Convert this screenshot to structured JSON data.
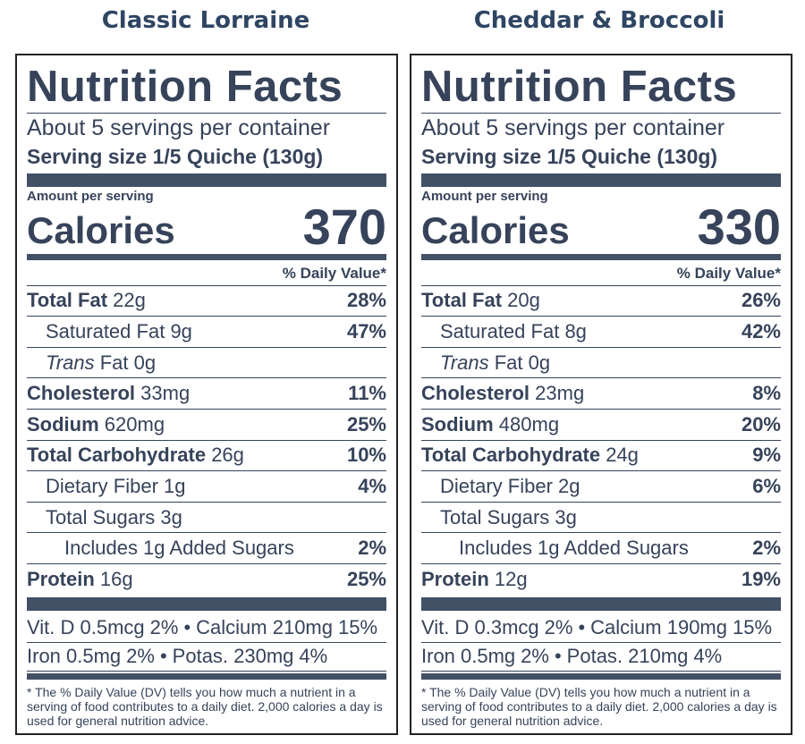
{
  "labels": [
    {
      "header": "Classic Lorraine",
      "title": "Nutrition Facts",
      "servings": "About 5 servings per container",
      "serving_size": "Serving size 1/5 Quiche (130g)",
      "amount_per_serving": "Amount per serving",
      "calories_label": "Calories",
      "calories": "370",
      "dv_header": "% Daily Value*",
      "rows": [
        {
          "name": "Total Fat",
          "amount": "22g",
          "dv": "28%",
          "bold": true,
          "indent": 0
        },
        {
          "name": "Saturated Fat",
          "amount": "9g",
          "dv": "47%",
          "bold": false,
          "indent": 1
        },
        {
          "name": "Trans",
          "amount": "Fat 0g",
          "bold": false,
          "italic": true,
          "indent": 1
        },
        {
          "name": "Cholesterol",
          "amount": "33mg",
          "dv": "11%",
          "bold": true,
          "indent": 0
        },
        {
          "name": "Sodium",
          "amount": "620mg",
          "dv": "25%",
          "bold": true,
          "indent": 0
        },
        {
          "name": "Total Carbohydrate",
          "amount": "26g",
          "dv": "10%",
          "bold": true,
          "indent": 0
        },
        {
          "name": "Dietary Fiber",
          "amount": "1g",
          "dv": "4%",
          "bold": false,
          "indent": 1
        },
        {
          "name": "Total Sugars",
          "amount": "3g",
          "bold": false,
          "indent": 1
        },
        {
          "name": "Includes 1g Added Sugars",
          "dv": "2%",
          "bold": false,
          "indent": 2
        },
        {
          "name": "Protein",
          "amount": "16g",
          "dv": "25%",
          "bold": true,
          "indent": 0
        }
      ],
      "minerals": [
        [
          {
            "text": "Vit. D 0.5mcg",
            "dv": "2%"
          },
          {
            "text": "Calcium 210mg",
            "dv": "15%"
          }
        ],
        [
          {
            "text": "Iron 0.5mg",
            "dv": "2%"
          },
          {
            "text": "Potas. 230mg",
            "dv": "4%"
          }
        ]
      ],
      "footnote": "* The % Daily Value (DV) tells you how much a nutrient in a serving of food contributes to a daily diet. 2,000 calories a day is used for general nutrition advice."
    },
    {
      "header": "Cheddar & Broccoli",
      "title": "Nutrition Facts",
      "servings": "About 5 servings per container",
      "serving_size": "Serving size 1/5 Quiche (130g)",
      "amount_per_serving": "Amount per serving",
      "calories_label": "Calories",
      "calories": "330",
      "dv_header": "% Daily Value*",
      "rows": [
        {
          "name": "Total Fat",
          "amount": "20g",
          "dv": "26%",
          "bold": true,
          "indent": 0
        },
        {
          "name": "Saturated Fat",
          "amount": "8g",
          "dv": "42%",
          "bold": false,
          "indent": 1
        },
        {
          "name": "Trans",
          "amount": "Fat 0g",
          "bold": false,
          "italic": true,
          "indent": 1
        },
        {
          "name": "Cholesterol",
          "amount": "23mg",
          "dv": "8%",
          "bold": true,
          "indent": 0
        },
        {
          "name": "Sodium",
          "amount": "480mg",
          "dv": "20%",
          "bold": true,
          "indent": 0
        },
        {
          "name": "Total Carbohydrate",
          "amount": "24g",
          "dv": "9%",
          "bold": true,
          "indent": 0
        },
        {
          "name": "Dietary Fiber",
          "amount": "2g",
          "dv": "6%",
          "bold": false,
          "indent": 1
        },
        {
          "name": "Total Sugars",
          "amount": "3g",
          "bold": false,
          "indent": 1
        },
        {
          "name": "Includes 1g Added Sugars",
          "dv": "2%",
          "bold": false,
          "indent": 2
        },
        {
          "name": "Protein",
          "amount": "12g",
          "dv": "19%",
          "bold": true,
          "indent": 0
        }
      ],
      "minerals": [
        [
          {
            "text": "Vit. D 0.3mcg",
            "dv": "2%"
          },
          {
            "text": "Calcium 190mg",
            "dv": "15%"
          }
        ],
        [
          {
            "text": "Iron 0.5mg",
            "dv": "2%"
          },
          {
            "text": "Potas. 210mg",
            "dv": "4%"
          }
        ]
      ],
      "footnote": "* The % Daily Value (DV) tells you how much a nutrient in a serving of food contributes to a daily diet. 2,000 calories a day is used for general nutrition advice."
    }
  ]
}
